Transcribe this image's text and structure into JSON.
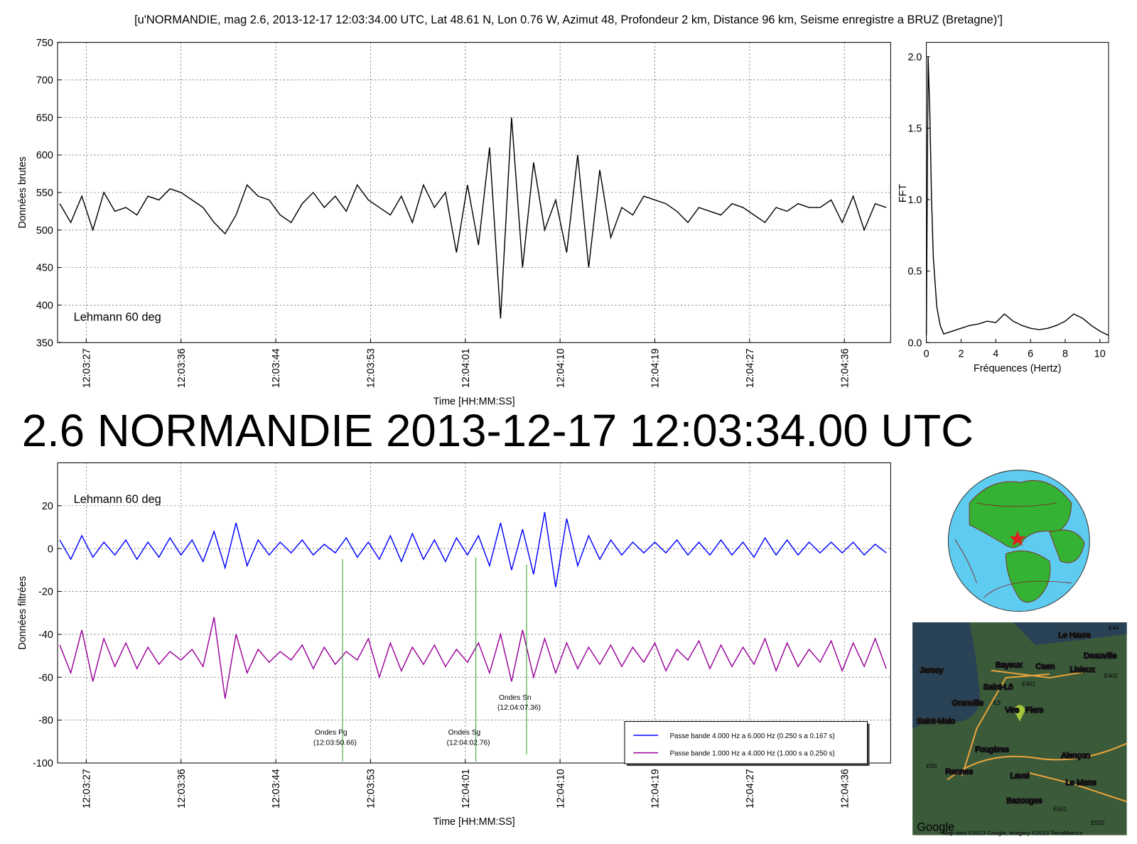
{
  "figure": {
    "title": "[u'NORMANDIE, mag 2.6, 2013-12-17 12:03:34.00 UTC, Lat 48.61 N, Lon 0.76 W, Azimut 48, Profondeur 2 km, Distance 96 km, Seisme enregistre a BRUZ (Bretagne)']",
    "headline": "2.6 NORMANDIE 2013-12-17 12:03:34.00 UTC",
    "headline_color": "#f58383"
  },
  "chart_data": [
    {
      "type": "line",
      "xlabel": "Time [HH:MM:SS]",
      "ylabel": "Données brutes",
      "note": "Lehmann 60 deg",
      "note_color": "#f58383",
      "grid": true,
      "xtick_rotation": 90,
      "xlim": [
        43404.8,
        43480.4
      ],
      "ylim": [
        350,
        750
      ],
      "xticks": [
        {
          "value": 43407.4,
          "label": "12:03:27"
        },
        {
          "value": 43416.0,
          "label": "12:03:36"
        },
        {
          "value": 43424.6,
          "label": "12:03:44"
        },
        {
          "value": 43433.2,
          "label": "12:03:53"
        },
        {
          "value": 43441.8,
          "label": "12:04:01"
        },
        {
          "value": 43450.4,
          "label": "12:04:10"
        },
        {
          "value": 43459.0,
          "label": "12:04:19"
        },
        {
          "value": 43467.6,
          "label": "12:04:27"
        },
        {
          "value": 43476.2,
          "label": "12:04:36"
        }
      ],
      "yticks": [
        350,
        400,
        450,
        500,
        550,
        600,
        650,
        700,
        750
      ],
      "x": [
        43405,
        43406,
        43407,
        43408,
        43409,
        43410,
        43411,
        43412,
        43413,
        43414,
        43415,
        43416,
        43417,
        43418,
        43419,
        43420,
        43421,
        43422,
        43423,
        43424,
        43425,
        43426,
        43427,
        43428,
        43429,
        43430,
        43431,
        43432,
        43433,
        43434,
        43435,
        43436,
        43437,
        43438,
        43439,
        43440,
        43441,
        43442,
        43443,
        43444,
        43445,
        43446,
        43447,
        43448,
        43449,
        43450,
        43451,
        43452,
        43453,
        43454,
        43455,
        43456,
        43457,
        43458,
        43459,
        43460,
        43461,
        43462,
        43463,
        43464,
        43465,
        43466,
        43467,
        43468,
        43469,
        43470,
        43471,
        43472,
        43473,
        43474,
        43475,
        43476,
        43477,
        43478,
        43479,
        43480
      ],
      "series": [
        {
          "color": "#000000",
          "values": [
            535,
            510,
            545,
            500,
            550,
            525,
            530,
            520,
            545,
            540,
            555,
            550,
            540,
            530,
            510,
            495,
            520,
            560,
            545,
            540,
            520,
            510,
            535,
            550,
            530,
            545,
            525,
            560,
            540,
            530,
            520,
            545,
            510,
            560,
            530,
            550,
            470,
            560,
            480,
            610,
            382,
            650,
            450,
            590,
            500,
            540,
            470,
            600,
            450,
            580,
            490,
            530,
            520,
            545,
            540,
            535,
            525,
            510,
            530,
            525,
            520,
            535,
            530,
            520,
            510,
            530,
            525,
            535,
            530,
            530,
            540,
            510,
            545,
            500,
            535,
            530
          ]
        }
      ]
    },
    {
      "type": "line",
      "xlabel": "Fréquences (Hertz)",
      "ylabel": "FFT",
      "grid": false,
      "xlim": [
        0,
        10.5
      ],
      "ylim": [
        0,
        2.1
      ],
      "xticks": [
        0,
        2,
        4,
        6,
        8,
        10
      ],
      "yticks": [
        {
          "value": 0,
          "label": "0.0"
        },
        {
          "value": 0.5,
          "label": "0.5"
        },
        {
          "value": 1,
          "label": "1.0"
        },
        {
          "value": 1.5,
          "label": "1.5"
        },
        {
          "value": 2,
          "label": "2.0"
        }
      ],
      "x": [
        0,
        0.1,
        0.2,
        0.3,
        0.4,
        0.6,
        0.8,
        1.0,
        1.5,
        2,
        2.5,
        3,
        3.5,
        4,
        4.5,
        5,
        5.5,
        6,
        6.5,
        7,
        7.5,
        8,
        8.5,
        9,
        9.5,
        10,
        10.5
      ],
      "series": [
        {
          "color": "#000000",
          "values": [
            0.05,
            2.0,
            1.6,
            1.0,
            0.6,
            0.25,
            0.12,
            0.06,
            0.08,
            0.1,
            0.12,
            0.13,
            0.15,
            0.14,
            0.2,
            0.15,
            0.12,
            0.1,
            0.09,
            0.1,
            0.12,
            0.15,
            0.2,
            0.17,
            0.12,
            0.08,
            0.05
          ]
        }
      ]
    },
    {
      "type": "line",
      "xlabel": "Time [HH:MM:SS]",
      "ylabel": "Données filtrées",
      "note": "Lehmann 60 deg",
      "note_color": "#9b1b9b",
      "grid": true,
      "xtick_rotation": 90,
      "legend": "lower right",
      "xlim": [
        43404.8,
        43480.4
      ],
      "ylim": [
        -100,
        40
      ],
      "xticks": [
        {
          "value": 43407.4,
          "label": "12:03:27"
        },
        {
          "value": 43416.0,
          "label": "12:03:36"
        },
        {
          "value": 43424.6,
          "label": "12:03:44"
        },
        {
          "value": 43433.2,
          "label": "12:03:53"
        },
        {
          "value": 43441.8,
          "label": "12:04:01"
        },
        {
          "value": 43450.4,
          "label": "12:04:10"
        },
        {
          "value": 43459.0,
          "label": "12:04:19"
        },
        {
          "value": 43467.6,
          "label": "12:04:27"
        },
        {
          "value": 43476.2,
          "label": "12:04:36"
        }
      ],
      "yticks": [
        -100,
        -80,
        -60,
        -40,
        -20,
        0,
        20
      ],
      "x": [
        43405,
        43406,
        43407,
        43408,
        43409,
        43410,
        43411,
        43412,
        43413,
        43414,
        43415,
        43416,
        43417,
        43418,
        43419,
        43420,
        43421,
        43422,
        43423,
        43424,
        43425,
        43426,
        43427,
        43428,
        43429,
        43430,
        43431,
        43432,
        43433,
        43434,
        43435,
        43436,
        43437,
        43438,
        43439,
        43440,
        43441,
        43442,
        43443,
        43444,
        43445,
        43446,
        43447,
        43448,
        43449,
        43450,
        43451,
        43452,
        43453,
        43454,
        43455,
        43456,
        43457,
        43458,
        43459,
        43460,
        43461,
        43462,
        43463,
        43464,
        43465,
        43466,
        43467,
        43468,
        43469,
        43470,
        43471,
        43472,
        43473,
        43474,
        43475,
        43476,
        43477,
        43478,
        43479,
        43480
      ],
      "series": [
        {
          "name": "Passe bande 4.000 Hz a 6.000 Hz (0.250 s a 0.167 s)",
          "color": "#0000ff",
          "values": [
            4,
            -5,
            6,
            -4,
            3,
            -3,
            4,
            -5,
            3,
            -4,
            5,
            -3,
            4,
            -6,
            8,
            -9,
            12,
            -8,
            4,
            -3,
            3,
            -2,
            4,
            -3,
            2,
            -2,
            5,
            -4,
            3,
            -5,
            6,
            -6,
            7,
            -5,
            4,
            -6,
            5,
            -3,
            6,
            -8,
            12,
            -10,
            9,
            -12,
            17,
            -18,
            14,
            -8,
            6,
            -5,
            4,
            -3,
            3,
            -2,
            3,
            -2,
            4,
            -3,
            3,
            -3,
            4,
            -3,
            3,
            -4,
            5,
            -3,
            4,
            -3,
            3,
            -2,
            3,
            -2,
            3,
            -3,
            2,
            -2
          ]
        },
        {
          "name": "Passe bande 1.000 Hz a 4.000 Hz (1.000 s a 0.250 s)",
          "color": "#990099",
          "values": [
            -45,
            -58,
            -38,
            -62,
            -42,
            -55,
            -44,
            -56,
            -46,
            -54,
            -48,
            -52,
            -47,
            -55,
            -32,
            -70,
            -40,
            -58,
            -47,
            -53,
            -48,
            -52,
            -45,
            -56,
            -46,
            -54,
            -48,
            -52,
            -42,
            -60,
            -44,
            -57,
            -46,
            -54,
            -45,
            -55,
            -47,
            -53,
            -44,
            -58,
            -40,
            -62,
            -38,
            -60,
            -42,
            -58,
            -44,
            -56,
            -46,
            -54,
            -45,
            -55,
            -46,
            -53,
            -44,
            -57,
            -47,
            -52,
            -43,
            -56,
            -45,
            -55,
            -46,
            -54,
            -42,
            -57,
            -44,
            -55,
            -47,
            -53,
            -43,
            -57,
            -44,
            -55,
            -42,
            -56
          ]
        }
      ],
      "annotations": [
        {
          "x": 43430.66,
          "label": "Ondes Pg",
          "time_label": "(12:03:50.66)",
          "color": "#2ca02c"
        },
        {
          "x": 43442.76,
          "label": "Ondes Sg",
          "time_label": "(12:04:02.76)",
          "color": "#2ca02c"
        },
        {
          "x": 43447.36,
          "label": "Ondes Sn",
          "time_label": "(12:04:07.36)",
          "color": "#2ca02c"
        }
      ]
    }
  ],
  "map": {
    "labels": [
      "Le Havre",
      "Deauville",
      "Caen",
      "Lisieux",
      "Bayeux",
      "Jersey",
      "Saint-Lô",
      "Granville",
      "Vire",
      "Flers",
      "Saint-Malo",
      "Fougères",
      "Alençon",
      "Rennes",
      "Laval",
      "Le Mans",
      "Bazouges",
      "E44",
      "E402",
      "E401",
      "E3",
      "E50",
      "E501",
      "E502",
      "Google",
      "Map data ©2013 Google, Imagery ©2013 TerraMetrics"
    ]
  }
}
